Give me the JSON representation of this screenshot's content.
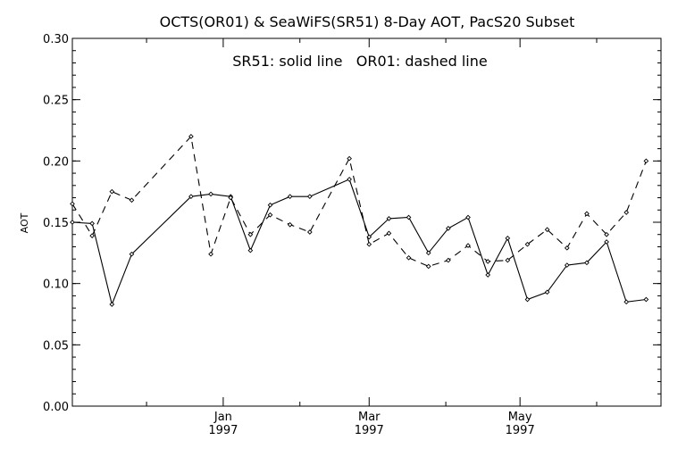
{
  "chart_data": {
    "type": "line",
    "title": "OCTS(OR01) & SeaWiFS(SR51) 8-Day AOT, PacS20 Subset",
    "annotation": "SR51: solid line   OR01: dashed line",
    "ylabel": "AOT",
    "xlabel": "",
    "ylim": [
      0.0,
      0.3
    ],
    "xlim": [
      "1996-11-01",
      "1997-06-27"
    ],
    "y_ticks": [
      "0.00",
      "0.05",
      "0.10",
      "0.15",
      "0.20",
      "0.25",
      "0.30"
    ],
    "x_ticks": [
      {
        "date": "1997-01-01",
        "label": "Jan",
        "sublabel": "1997"
      },
      {
        "date": "1997-03-01",
        "label": "Mar",
        "sublabel": "1997"
      },
      {
        "date": "1997-05-01",
        "label": "May",
        "sublabel": "1997"
      }
    ],
    "series": [
      {
        "name": "SR51",
        "style": "solid",
        "points": [
          [
            "1996-11-01",
            0.15
          ],
          [
            "1996-11-09",
            0.149
          ],
          [
            "1996-11-17",
            0.083
          ],
          [
            "1996-11-25",
            0.124
          ],
          [
            "1996-12-19",
            0.171
          ],
          [
            "1996-12-27",
            0.173
          ],
          [
            "1997-01-04",
            0.171
          ],
          [
            "1997-01-12",
            0.127
          ],
          [
            "1997-01-20",
            0.164
          ],
          [
            "1997-01-28",
            0.171
          ],
          [
            "1997-02-05",
            0.171
          ],
          [
            "1997-02-21",
            0.185
          ],
          [
            "1997-03-01",
            0.138
          ],
          [
            "1997-03-09",
            0.153
          ],
          [
            "1997-03-17",
            0.154
          ],
          [
            "1997-03-25",
            0.125
          ],
          [
            "1997-04-02",
            0.145
          ],
          [
            "1997-04-10",
            0.154
          ],
          [
            "1997-04-18",
            0.107
          ],
          [
            "1997-04-26",
            0.137
          ],
          [
            "1997-05-04",
            0.087
          ],
          [
            "1997-05-12",
            0.093
          ],
          [
            "1997-05-20",
            0.115
          ],
          [
            "1997-05-28",
            0.117
          ],
          [
            "1997-06-05",
            0.134
          ],
          [
            "1997-06-13",
            0.085
          ],
          [
            "1997-06-21",
            0.087
          ]
        ]
      },
      {
        "name": "OR01",
        "style": "dashed",
        "points": [
          [
            "1996-11-01",
            0.165
          ],
          [
            "1996-11-09",
            0.139
          ],
          [
            "1996-11-17",
            0.175
          ],
          [
            "1996-11-25",
            0.168
          ],
          [
            "1996-12-19",
            0.22
          ],
          [
            "1996-12-27",
            0.124
          ],
          [
            "1997-01-04",
            0.17
          ],
          [
            "1997-01-12",
            0.14
          ],
          [
            "1997-01-20",
            0.156
          ],
          [
            "1997-01-28",
            0.148
          ],
          [
            "1997-02-05",
            0.142
          ],
          [
            "1997-02-21",
            0.202
          ],
          [
            "1997-03-01",
            0.132
          ],
          [
            "1997-03-09",
            0.141
          ],
          [
            "1997-03-17",
            0.121
          ],
          [
            "1997-03-25",
            0.114
          ],
          [
            "1997-04-02",
            0.119
          ],
          [
            "1997-04-10",
            0.131
          ],
          [
            "1997-04-18",
            0.118
          ],
          [
            "1997-04-26",
            0.119
          ],
          [
            "1997-05-04",
            0.132
          ],
          [
            "1997-05-12",
            0.144
          ],
          [
            "1997-05-20",
            0.129
          ],
          [
            "1997-05-28",
            0.157
          ],
          [
            "1997-06-05",
            0.14
          ],
          [
            "1997-06-13",
            0.158
          ],
          [
            "1997-06-21",
            0.2
          ]
        ]
      }
    ],
    "grid": false,
    "legend": "top-center"
  }
}
